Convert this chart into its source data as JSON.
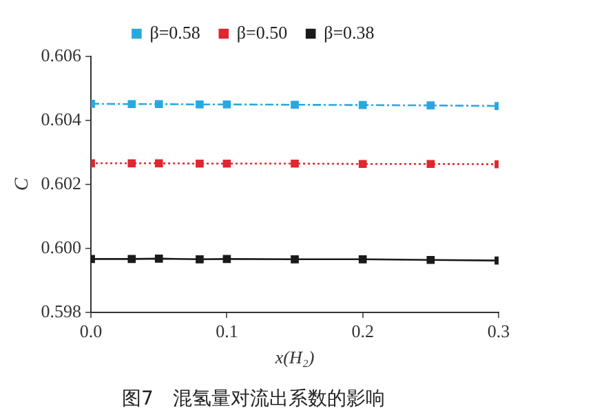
{
  "chart_data": {
    "type": "line",
    "title": "图7　混氢量对流出系数的影响",
    "xlabel": "x(H₂)",
    "ylabel": "C",
    "x": [
      0,
      0.03,
      0.05,
      0.08,
      0.1,
      0.15,
      0.2,
      0.25,
      0.3
    ],
    "series": [
      {
        "name": "β=0.58",
        "color": "#29a8e0",
        "line_style": "dashdot",
        "values": [
          0.60452,
          0.60451,
          0.60451,
          0.6045,
          0.6045,
          0.60449,
          0.60448,
          0.60447,
          0.60445
        ]
      },
      {
        "name": "β=0.50",
        "color": "#e0262e",
        "line_style": "dotted",
        "values": [
          0.60266,
          0.60266,
          0.60266,
          0.60265,
          0.60265,
          0.60265,
          0.60264,
          0.60264,
          0.60263
        ]
      },
      {
        "name": "β=0.38",
        "color": "#1a1a1a",
        "line_style": "solid",
        "values": [
          0.59967,
          0.59967,
          0.59968,
          0.59966,
          0.59967,
          0.59966,
          0.59966,
          0.59964,
          0.59962
        ]
      }
    ],
    "xlim": [
      0,
      0.3
    ],
    "xticks": [
      {
        "value": 0,
        "label": "0.0"
      },
      0.1,
      0.2,
      0.3
    ],
    "ylim": [
      0.598,
      0.606
    ],
    "yticks": [
      0.598,
      {
        "value": 0.6,
        "label": "0.600"
      },
      0.602,
      0.604,
      0.606
    ],
    "grid": false,
    "legend": "top",
    "marker": "square"
  }
}
